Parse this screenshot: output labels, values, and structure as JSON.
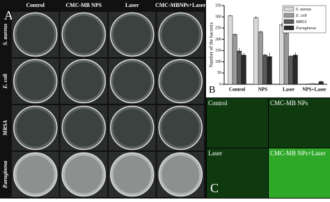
{
  "panel_a": {
    "label": "A",
    "columns": [
      "Control",
      "CMC-MB NPS",
      "Laser",
      "CMC-MBNPs+Laser"
    ],
    "rows": [
      "S. aureus",
      "E. coli",
      "MRSA",
      "P.aruginosa"
    ]
  },
  "chart_data": {
    "type": "bar",
    "label": "B",
    "ylabel": "Number of the bacteria",
    "categories": [
      "Control",
      "NPS",
      "Laser",
      "NPS+Laser"
    ],
    "series": [
      {
        "name": "S. aureus",
        "color": "#d9d9d9",
        "values": [
          305,
          297,
          265,
          2
        ],
        "errors": [
          4,
          6,
          8,
          1
        ]
      },
      {
        "name": "E. coli",
        "color": "#9a9a9a",
        "values": [
          222,
          233,
          240,
          3
        ],
        "errors": [
          5,
          6,
          18,
          1
        ]
      },
      {
        "name": "MRSA",
        "color": "#5a5a5a",
        "values": [
          148,
          130,
          125,
          2
        ],
        "errors": [
          12,
          6,
          5,
          1
        ]
      },
      {
        "name": "P.aruginosa",
        "color": "#2a2a2a",
        "values": [
          130,
          123,
          130,
          12
        ],
        "errors": [
          10,
          18,
          12,
          4
        ]
      }
    ],
    "ylim": [
      0,
      350
    ],
    "yticks": [
      0,
      50,
      100,
      150,
      200,
      250,
      300,
      350
    ],
    "legend": "top-right"
  },
  "panel_c": {
    "label": "C",
    "images": [
      "Control",
      "CMC-MB NPs",
      "Laser",
      "CMC-MB NPs+Laser"
    ]
  }
}
